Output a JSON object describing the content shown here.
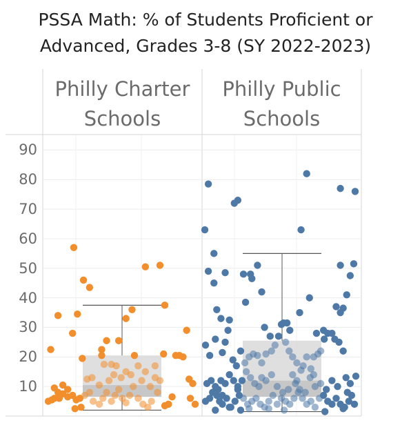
{
  "title": "PSSA Math: % of Students Proficient or Advanced, Grades 3-8 (SY 2022-2023)",
  "colors": {
    "charter": "#f28e2b",
    "public": "#4e79a7"
  },
  "chart_data": {
    "type": "scatter",
    "title": "PSSA Math: % of Students Proficient or Advanced, Grades 3-8 (SY 2022-2023)",
    "xlabel": "",
    "ylabel": "",
    "ylim": [
      0,
      95
    ],
    "yticks": [
      10,
      20,
      30,
      40,
      50,
      60,
      70,
      80,
      90
    ],
    "grid": true,
    "panels": [
      {
        "name": "Philly Charter Schools",
        "box": {
          "whisker_low": 2,
          "q1": 6.5,
          "median": 10.5,
          "q3": 20.5,
          "whisker_high": 37.5
        },
        "points": [
          [
            0.3,
            22.5
          ],
          [
            0.36,
            34
          ],
          [
            0.48,
            28
          ],
          [
            0.52,
            34.5
          ],
          [
            0.49,
            57
          ],
          [
            0.57,
            46
          ],
          [
            0.62,
            43.5
          ],
          [
            0.76,
            25.5
          ],
          [
            0.72,
            22.5
          ],
          [
            0.72,
            20.5
          ],
          [
            0.56,
            19.5
          ],
          [
            0.33,
            9.5
          ],
          [
            0.4,
            10.5
          ],
          [
            0.44,
            9
          ],
          [
            0.33,
            6
          ],
          [
            0.36,
            8
          ],
          [
            0.4,
            7.5
          ],
          [
            0.28,
            5
          ],
          [
            0.31,
            5.5
          ],
          [
            0.37,
            6
          ],
          [
            0.44,
            6.5
          ],
          [
            0.48,
            7
          ],
          [
            0.51,
            5.5
          ],
          [
            0.54,
            6
          ],
          [
            0.58,
            7
          ],
          [
            0.62,
            8
          ],
          [
            0.65,
            5
          ],
          [
            0.7,
            4
          ],
          [
            0.73,
            6
          ],
          [
            0.76,
            8
          ],
          [
            0.8,
            5
          ],
          [
            0.83,
            7
          ],
          [
            0.86,
            9
          ],
          [
            0.89,
            6
          ],
          [
            0.92,
            4.5
          ],
          [
            0.95,
            7
          ],
          [
            0.55,
            3
          ],
          [
            0.74,
            17.5
          ],
          [
            0.8,
            17.5
          ],
          [
            0.84,
            17
          ],
          [
            0.78,
            12
          ],
          [
            0.82,
            14
          ],
          [
            0.88,
            13
          ],
          [
            0.92,
            15
          ],
          [
            0.96,
            14
          ],
          [
            0.98,
            10
          ],
          [
            0.6,
            12.5
          ],
          [
            0.64,
            13
          ],
          [
            0.7,
            10.5
          ],
          [
            0.86,
            25.5
          ],
          [
            0.92,
            33
          ],
          [
            1.02,
            17
          ],
          [
            1.08,
            15
          ],
          [
            1.12,
            10
          ],
          [
            1.05,
            12
          ],
          [
            1.16,
            13
          ],
          [
            0.97,
            36
          ],
          [
            1.08,
            50.5
          ],
          [
            1.2,
            51
          ],
          [
            1.24,
            37.5
          ],
          [
            1.16,
            17
          ],
          [
            1.2,
            12
          ],
          [
            1.18,
            8
          ],
          [
            1.02,
            6
          ],
          [
            1.06,
            4
          ],
          [
            1.1,
            3
          ],
          [
            1.13,
            5
          ],
          [
            1.24,
            3.5
          ],
          [
            1.27,
            4
          ],
          [
            1.3,
            6.5
          ],
          [
            1.33,
            20.5
          ],
          [
            1.36,
            20.5
          ],
          [
            1.39,
            20
          ],
          [
            1.42,
            29
          ],
          [
            1.44,
            12.5
          ],
          [
            1.47,
            11
          ],
          [
            1.49,
            4
          ],
          [
            1.45,
            6
          ],
          [
            1.23,
            21
          ],
          [
            0.99,
            20.5
          ],
          [
            0.5,
            2.5
          ]
        ]
      },
      {
        "name": "Philly Public Schools",
        "box": {
          "whisker_low": 1.5,
          "q1": 6.5,
          "median": 12,
          "q3": 25.5,
          "whisker_high": 55
        },
        "points": [
          [
            0.05,
            63
          ],
          [
            0.1,
            78.5
          ],
          [
            0.18,
            55
          ],
          [
            0.1,
            49
          ],
          [
            0.34,
            48.5
          ],
          [
            0.47,
            72
          ],
          [
            0.52,
            73
          ],
          [
            0.6,
            48
          ],
          [
            0.7,
            48
          ],
          [
            0.72,
            46.5
          ],
          [
            0.8,
            51
          ],
          [
            0.86,
            42
          ],
          [
            0.63,
            38.5
          ],
          [
            0.22,
            36
          ],
          [
            0.28,
            33
          ],
          [
            0.4,
            32.5
          ],
          [
            0.38,
            29
          ],
          [
            0.2,
            26
          ],
          [
            0.34,
            25
          ],
          [
            0.06,
            24
          ],
          [
            0.12,
            20.5
          ],
          [
            0.3,
            21.5
          ],
          [
            0.45,
            19
          ],
          [
            0.62,
            18
          ],
          [
            0.68,
            20
          ],
          [
            0.74,
            21
          ],
          [
            0.8,
            20.5
          ],
          [
            0.86,
            18
          ],
          [
            0.92,
            21
          ],
          [
            1.0,
            22
          ],
          [
            1.05,
            24
          ],
          [
            1.1,
            27
          ],
          [
            1.2,
            25
          ],
          [
            1.25,
            22
          ],
          [
            1.3,
            20
          ],
          [
            1.36,
            18
          ],
          [
            1.45,
            17
          ],
          [
            1.5,
            20
          ],
          [
            1.56,
            16
          ],
          [
            1.6,
            20
          ],
          [
            1.66,
            21
          ],
          [
            1.7,
            22
          ],
          [
            1.75,
            26
          ],
          [
            1.8,
            28
          ],
          [
            1.86,
            28
          ],
          [
            1.9,
            26
          ],
          [
            1.96,
            25
          ],
          [
            2.02,
            22
          ],
          [
            1.5,
            82
          ],
          [
            1.42,
            63
          ],
          [
            1.17,
            31.5
          ],
          [
            1.14,
            31
          ],
          [
            1.22,
            31.5
          ],
          [
            1.26,
            29
          ],
          [
            1.4,
            35
          ],
          [
            1.54,
            40
          ],
          [
            1.92,
            37
          ],
          [
            1.98,
            35
          ],
          [
            2.02,
            36.5
          ],
          [
            2.07,
            41
          ],
          [
            2.12,
            47.5
          ],
          [
            2.17,
            51.5
          ],
          [
            2.19,
            76
          ],
          [
            1.98,
            77
          ],
          [
            1.98,
            51
          ],
          [
            1.74,
            29
          ],
          [
            1.64,
            28
          ],
          [
            1.3,
            14
          ],
          [
            1.36,
            12
          ],
          [
            1.0,
            14
          ],
          [
            0.92,
            12
          ],
          [
            0.86,
            13
          ],
          [
            0.82,
            10
          ],
          [
            0.76,
            11
          ],
          [
            0.7,
            13
          ],
          [
            0.64,
            15
          ],
          [
            0.58,
            12
          ],
          [
            0.52,
            10
          ],
          [
            0.46,
            12
          ],
          [
            0.4,
            14
          ],
          [
            0.34,
            11
          ],
          [
            0.28,
            12
          ],
          [
            0.2,
            10
          ],
          [
            0.14,
            12
          ],
          [
            0.08,
            11
          ],
          [
            0.06,
            5
          ],
          [
            0.12,
            6
          ],
          [
            0.16,
            8
          ],
          [
            0.22,
            7
          ],
          [
            0.26,
            5
          ],
          [
            0.3,
            4
          ],
          [
            0.36,
            6
          ],
          [
            0.42,
            3
          ],
          [
            0.48,
            5
          ],
          [
            0.54,
            7
          ],
          [
            0.6,
            6
          ],
          [
            0.66,
            4
          ],
          [
            0.72,
            5
          ],
          [
            0.78,
            6
          ],
          [
            0.84,
            4
          ],
          [
            0.9,
            3
          ],
          [
            0.96,
            5
          ],
          [
            1.02,
            7
          ],
          [
            1.08,
            4
          ],
          [
            1.14,
            6
          ],
          [
            1.2,
            5
          ],
          [
            1.26,
            4
          ],
          [
            1.32,
            6
          ],
          [
            1.38,
            8
          ],
          [
            1.44,
            6
          ],
          [
            1.5,
            4
          ],
          [
            1.56,
            5
          ],
          [
            1.62,
            3
          ],
          [
            1.68,
            6
          ],
          [
            1.74,
            7
          ],
          [
            1.8,
            5
          ],
          [
            1.86,
            4
          ],
          [
            1.92,
            6
          ],
          [
            1.98,
            4
          ],
          [
            2.04,
            3
          ],
          [
            2.1,
            5
          ],
          [
            2.14,
            7
          ],
          [
            2.18,
            4
          ],
          [
            2.2,
            13.5
          ],
          [
            2.12,
            11
          ],
          [
            2.06,
            13
          ],
          [
            1.94,
            10
          ],
          [
            1.86,
            12
          ],
          [
            1.78,
            9
          ],
          [
            1.7,
            11
          ],
          [
            1.62,
            10
          ],
          [
            1.55,
            13
          ],
          [
            1.48,
            8
          ],
          [
            1.4,
            9
          ],
          [
            1.34,
            11
          ],
          [
            1.24,
            9
          ],
          [
            1.16,
            8
          ],
          [
            1.08,
            10
          ],
          [
            0.3,
            7
          ],
          [
            0.4,
            3
          ],
          [
            0.56,
            2
          ],
          [
            0.68,
            2.5
          ],
          [
            0.96,
            2.5
          ],
          [
            1.18,
            2
          ],
          [
            1.76,
            1.5
          ],
          [
            2.02,
            2.5
          ],
          [
            2.08,
            8
          ],
          [
            1.6,
            14
          ],
          [
            1.42,
            15.5
          ],
          [
            0.2,
            2
          ],
          [
            0.24,
            9
          ],
          [
            0.5,
            17
          ],
          [
            0.56,
            22
          ],
          [
            0.9,
            30
          ],
          [
            0.98,
            27
          ],
          [
            0.52,
            9
          ],
          [
            0.18,
            45
          ]
        ]
      }
    ]
  }
}
